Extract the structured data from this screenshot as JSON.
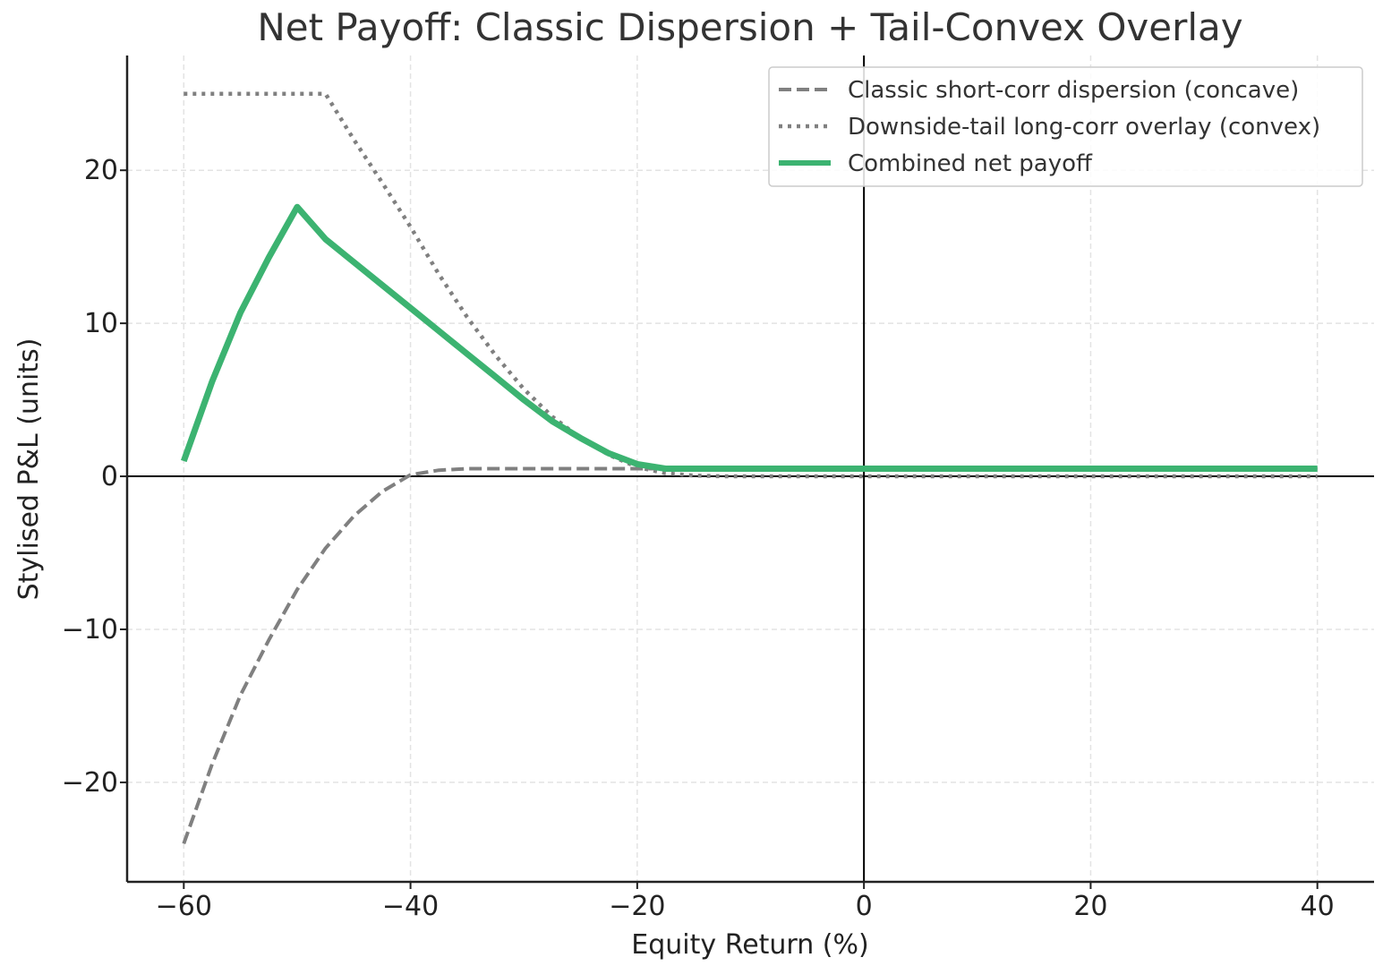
{
  "chart_data": {
    "type": "line",
    "title": "Net Payoff: Classic Dispersion + Tail-Convex Overlay",
    "xlabel": "Equity Return (%)",
    "ylabel": "Stylised P&L (units)",
    "xlim": [
      -65,
      45
    ],
    "ylim": [
      -26.5,
      27.5
    ],
    "xticks": [
      -60,
      -40,
      -20,
      0,
      20,
      40
    ],
    "yticks": [
      -20,
      -10,
      0,
      10,
      20
    ],
    "xtick_labels": [
      "−60",
      "−40",
      "−20",
      "0",
      "20",
      "40"
    ],
    "ytick_labels": [
      "−20",
      "−10",
      "0",
      "10",
      "20"
    ],
    "grid": true,
    "legend_position": "top-right",
    "x": [
      -60,
      -57.5,
      -55,
      -52.5,
      -50,
      -47.5,
      -45,
      -42.5,
      -40,
      -37.5,
      -35,
      -32.5,
      -30,
      -27.5,
      -25,
      -22.5,
      -20,
      -17.5,
      -15,
      -12.5,
      -10,
      -7.5,
      -5,
      -2.5,
      0,
      10,
      20,
      30,
      40
    ],
    "series": [
      {
        "name": "Classic short-corr dispersion (concave)",
        "style": "dashed",
        "color": "#808080",
        "values": [
          -24.0,
          -18.8,
          -14.3,
          -10.7,
          -7.4,
          -4.7,
          -2.6,
          -1.0,
          0.1,
          0.4,
          0.5,
          0.5,
          0.5,
          0.5,
          0.5,
          0.5,
          0.5,
          0.5,
          0.5,
          0.5,
          0.5,
          0.5,
          0.5,
          0.5,
          0.5,
          0.5,
          0.5,
          0.5,
          0.5
        ]
      },
      {
        "name": "Downside-tail long-corr overlay (convex)",
        "style": "dotted",
        "color": "#808080",
        "values": [
          25.0,
          25.0,
          25.0,
          25.0,
          25.0,
          25.0,
          22.0,
          19.2,
          16.3,
          13.2,
          10.4,
          7.9,
          5.7,
          3.9,
          2.5,
          1.4,
          0.6,
          0.2,
          0.05,
          0.0,
          0.0,
          0.0,
          0.0,
          0.0,
          0.0,
          0.0,
          0.0,
          0.0,
          0.0
        ]
      },
      {
        "name": "Combined net payoff",
        "style": "solid",
        "color": "#3cb371",
        "values": [
          1.0,
          6.2,
          10.7,
          14.3,
          17.6,
          15.5,
          14.0,
          12.5,
          11.0,
          9.5,
          8.0,
          6.5,
          5.0,
          3.6,
          2.5,
          1.5,
          0.8,
          0.5,
          0.5,
          0.5,
          0.5,
          0.5,
          0.5,
          0.5,
          0.5,
          0.5,
          0.5,
          0.5,
          0.5
        ]
      }
    ]
  }
}
